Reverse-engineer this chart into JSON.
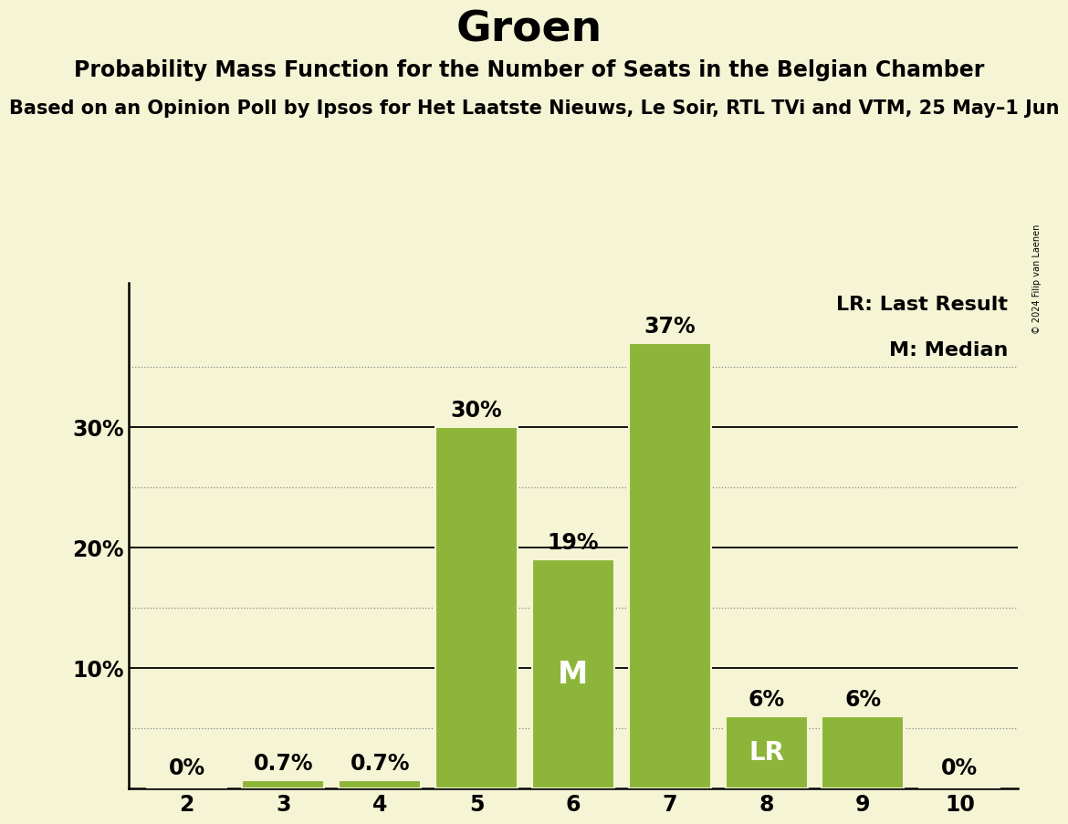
{
  "title": "Groen",
  "subtitle1": "Probability Mass Function for the Number of Seats in the Belgian Chamber",
  "subtitle2": "Based on an Opinion Poll by Ipsos for Het Laatste Nieuws, Le Soir, RTL TVi and VTM, 25 May–1 Jun",
  "watermark": "© 2024 Filip van Laenen",
  "categories": [
    2,
    3,
    4,
    5,
    6,
    7,
    8,
    9,
    10
  ],
  "values": [
    0.0,
    0.7,
    0.7,
    30.0,
    19.0,
    37.0,
    6.0,
    6.0,
    0.0
  ],
  "bar_color": "#8db53a",
  "background_color": "#f5f5d5",
  "bar_labels": [
    "0%",
    "0.7%",
    "0.7%",
    "30%",
    "19%",
    "37%",
    "6%",
    "6%",
    "0%"
  ],
  "median_bar_index": 4,
  "lr_bar_index": 6,
  "ylim": [
    0,
    42
  ],
  "solid_yticks": [
    10,
    20,
    30
  ],
  "dotted_yticks": [
    5,
    15,
    25,
    35
  ],
  "solid_ytick_labels": [
    "10%",
    "20%",
    "30%"
  ],
  "legend_lr": "LR: Last Result",
  "legend_m": "M: Median",
  "title_fontsize": 34,
  "subtitle1_fontsize": 17,
  "subtitle2_fontsize": 15,
  "bar_label_fontsize": 17,
  "axis_tick_fontsize": 17,
  "legend_fontsize": 16,
  "inside_label_fontsize_m": 24,
  "inside_label_fontsize_lr": 20
}
